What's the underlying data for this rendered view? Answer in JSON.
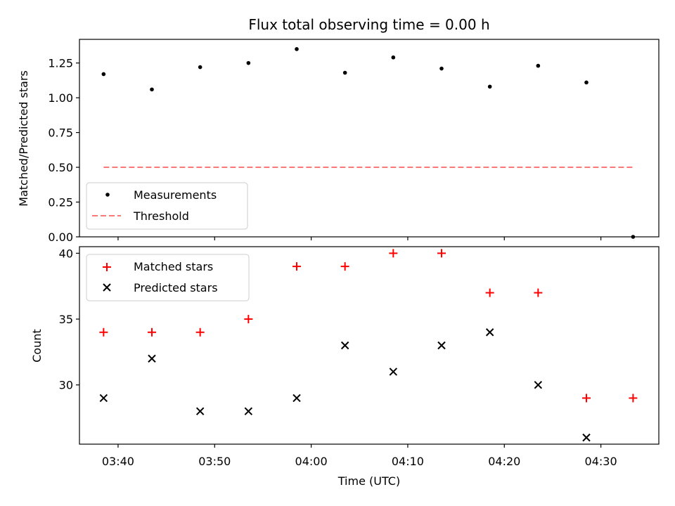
{
  "chart_data": [
    {
      "type": "scatter",
      "title": "Flux total observing time = 0.00 h",
      "xlabel": "",
      "ylabel": "Matched/Predicted stars",
      "ylim": [
        0,
        1.42
      ],
      "yticks": [
        0.0,
        0.25,
        0.5,
        0.75,
        1.0,
        1.25
      ],
      "ytick_labels": [
        "0.00",
        "0.25",
        "0.50",
        "0.75",
        "1.00",
        "1.25"
      ],
      "x": [
        "03:38:30",
        "03:43:30",
        "03:48:30",
        "03:53:30",
        "03:58:30",
        "04:03:30",
        "04:08:30",
        "04:13:30",
        "04:18:30",
        "04:23:30",
        "04:28:30",
        "04:33:20"
      ],
      "series": [
        {
          "name": "Measurements",
          "color": "#000000",
          "marker": "dot",
          "values": [
            1.17,
            1.06,
            1.22,
            1.25,
            1.35,
            1.18,
            1.29,
            1.21,
            1.08,
            1.23,
            1.11,
            0.0
          ]
        },
        {
          "name": "Threshold",
          "color": "#ff7777",
          "style": "dashed-line",
          "values": [
            0.5,
            0.5
          ]
        }
      ],
      "legend": "lower-left"
    },
    {
      "type": "scatter",
      "xlabel": "Time (UTC)",
      "ylabel": "Count",
      "ylim": [
        25.5,
        40.5
      ],
      "yticks": [
        30,
        35,
        40
      ],
      "xticks": [
        "03:40",
        "03:50",
        "04:00",
        "04:10",
        "04:20",
        "04:30"
      ],
      "x": [
        "03:38:30",
        "03:43:30",
        "03:48:30",
        "03:53:30",
        "03:58:30",
        "04:03:30",
        "04:08:30",
        "04:13:30",
        "04:18:30",
        "04:23:30",
        "04:28:30",
        "04:33:20"
      ],
      "series": [
        {
          "name": "Matched stars",
          "color": "#ff0000",
          "marker": "plus",
          "values": [
            34,
            34,
            34,
            35,
            39,
            39,
            40,
            40,
            37,
            37,
            29,
            29
          ]
        },
        {
          "name": "Predicted stars",
          "color": "#000000",
          "marker": "x",
          "values": [
            29,
            32,
            28,
            28,
            29,
            33,
            31,
            33,
            34,
            30,
            26,
            null
          ]
        }
      ],
      "legend": "upper-left"
    }
  ]
}
